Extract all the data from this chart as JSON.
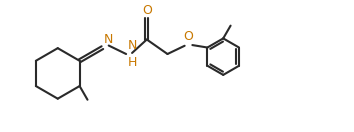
{
  "bond_color": "#2a2a2a",
  "atom_color": "#c87800",
  "background": "#ffffff",
  "lw": 1.5,
  "fs": 9.0,
  "xlim": [
    0.0,
    9.5
  ],
  "ylim": [
    0.5,
    4.2
  ]
}
